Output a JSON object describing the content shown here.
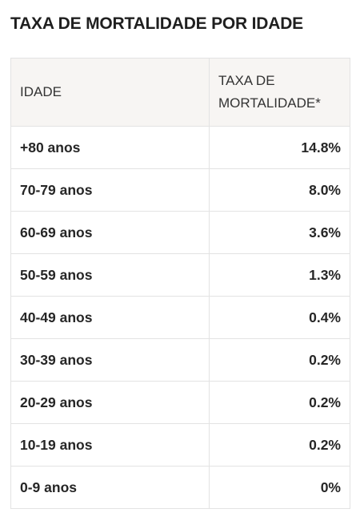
{
  "title": "TAXA DE MORTALIDADE POR IDADE",
  "table": {
    "headers": {
      "age": "IDADE",
      "rate": "TAXA DE MORTALIDADE*"
    },
    "rows": [
      {
        "age": "+80 anos",
        "rate": "14.8%"
      },
      {
        "age": "70-79 anos",
        "rate": "8.0%"
      },
      {
        "age": "60-69 anos",
        "rate": "3.6%"
      },
      {
        "age": "50-59 anos",
        "rate": "1.3%"
      },
      {
        "age": "40-49 anos",
        "rate": "0.4%"
      },
      {
        "age": "30-39 anos",
        "rate": "0.2%"
      },
      {
        "age": "20-29 anos",
        "rate": "0.2%"
      },
      {
        "age": "10-19 anos",
        "rate": "0.2%"
      },
      {
        "age": "0-9 anos",
        "rate": "0%"
      }
    ]
  }
}
